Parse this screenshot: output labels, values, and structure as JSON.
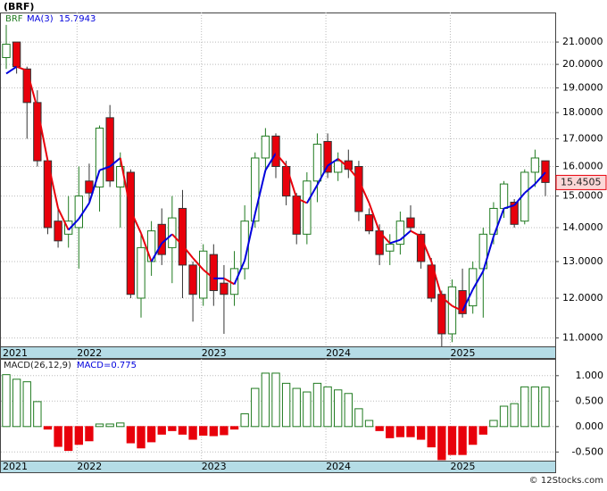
{
  "chart_data": {
    "type": "candlestick",
    "title": "(BRF)",
    "symbol": "BRF",
    "ma_name": "MA(3)",
    "ma_value": 15.7943,
    "last_price": 15.4505,
    "macd_name": "MACD(26,12,9)",
    "macd_value": {
      "value": 0.775,
      "label": "MACD=0.775"
    },
    "footer": "© 12Stocks.com",
    "log_scale": true,
    "grid": true,
    "up_color": "#1f7a1f",
    "down_color": "#e8000b",
    "ma_up_color": "#0000dd",
    "ma_down_color": "#e8000b",
    "categories": [
      "2021",
      null,
      null,
      null,
      null,
      null,
      null,
      "2022",
      null,
      null,
      null,
      null,
      null,
      null,
      null,
      null,
      null,
      null,
      null,
      "2023",
      null,
      null,
      null,
      null,
      null,
      null,
      null,
      null,
      null,
      null,
      null,
      "2024",
      null,
      null,
      null,
      null,
      null,
      null,
      null,
      null,
      null,
      null,
      null,
      "2025",
      null,
      null,
      null,
      null,
      null,
      null,
      null,
      null,
      null
    ],
    "open": [
      20.3,
      21.0,
      19.8,
      18.4,
      16.2,
      14.2,
      13.8,
      14.0,
      15.5,
      15.3,
      17.8,
      15.3,
      15.8,
      12.0,
      13.0,
      14.1,
      13.4,
      14.6,
      12.9,
      12.0,
      13.2,
      12.4,
      12.1,
      12.8,
      14.2,
      16.3,
      17.1,
      16.0,
      15.0,
      13.8,
      15.5,
      16.9,
      15.8,
      16.2,
      16.0,
      14.4,
      13.9,
      13.3,
      13.5,
      14.3,
      13.8,
      12.9,
      12.1,
      11.1,
      12.2,
      11.8,
      12.8,
      13.8,
      14.6,
      14.8,
      14.2,
      15.8,
      16.2
    ],
    "high": [
      21.8,
      21.0,
      19.9,
      18.9,
      16.3,
      14.6,
      15.0,
      16.0,
      16.1,
      17.5,
      18.3,
      16.5,
      15.9,
      13.8,
      14.2,
      14.6,
      15.0,
      15.2,
      13.0,
      13.5,
      13.5,
      12.9,
      13.3,
      14.7,
      16.5,
      17.4,
      17.2,
      16.2,
      15.1,
      15.8,
      17.2,
      17.2,
      16.5,
      16.6,
      16.2,
      14.6,
      14.1,
      13.8,
      14.5,
      14.7,
      13.9,
      13.1,
      12.2,
      12.5,
      12.8,
      13.0,
      14.0,
      14.8,
      15.5,
      14.9,
      15.9,
      16.6,
      16.2
    ],
    "low": [
      19.8,
      19.6,
      17.0,
      16.0,
      13.8,
      13.4,
      13.4,
      12.8,
      14.8,
      14.5,
      15.3,
      14.0,
      12.0,
      11.5,
      12.6,
      12.9,
      12.4,
      12.0,
      11.4,
      11.8,
      11.8,
      11.1,
      11.8,
      12.5,
      14.0,
      15.8,
      15.6,
      14.7,
      13.5,
      13.5,
      14.8,
      15.6,
      15.5,
      15.6,
      14.2,
      13.8,
      12.9,
      12.9,
      13.2,
      13.9,
      12.8,
      11.9,
      10.8,
      10.9,
      11.5,
      11.6,
      11.5,
      13.5,
      14.3,
      14.0,
      14.1,
      15.3,
      15.0
    ],
    "close": [
      20.9,
      19.9,
      18.4,
      16.2,
      14.0,
      13.6,
      14.2,
      15.0,
      15.1,
      17.4,
      15.5,
      16.0,
      12.1,
      13.4,
      13.9,
      13.2,
      14.3,
      12.9,
      12.1,
      13.3,
      12.2,
      12.1,
      12.8,
      14.2,
      16.3,
      17.1,
      16.0,
      15.0,
      13.8,
      15.5,
      16.8,
      15.8,
      16.2,
      15.9,
      14.5,
      13.9,
      13.2,
      13.5,
      14.2,
      14.0,
      13.0,
      12.0,
      11.1,
      12.3,
      11.6,
      12.8,
      13.8,
      14.6,
      15.4,
      14.1,
      15.8,
      16.3,
      15.4505
    ],
    "ma": [
      19.6,
      19.9,
      19.73,
      18.17,
      16.2,
      14.6,
      13.93,
      14.27,
      14.77,
      15.87,
      16.0,
      16.3,
      14.53,
      13.83,
      13.0,
      13.53,
      13.8,
      13.47,
      13.1,
      12.77,
      12.53,
      12.53,
      12.37,
      13.03,
      14.43,
      15.87,
      16.47,
      16.03,
      14.93,
      14.77,
      15.37,
      16.03,
      16.27,
      15.97,
      15.53,
      14.77,
      13.87,
      13.53,
      13.63,
      13.9,
      13.73,
      13.0,
      12.03,
      11.8,
      11.67,
      12.23,
      12.73,
      13.73,
      14.6,
      14.7,
      15.1,
      15.4,
      15.7943
    ],
    "macd": [
      1.02,
      0.93,
      0.88,
      0.49,
      -0.05,
      -0.39,
      -0.47,
      -0.35,
      -0.28,
      0.05,
      0.05,
      0.07,
      -0.32,
      -0.42,
      -0.3,
      -0.15,
      -0.08,
      -0.15,
      -0.25,
      -0.17,
      -0.18,
      -0.16,
      -0.05,
      0.25,
      0.75,
      1.05,
      1.05,
      0.85,
      0.75,
      0.68,
      0.85,
      0.78,
      0.72,
      0.65,
      0.35,
      0.12,
      -0.08,
      -0.22,
      -0.2,
      -0.2,
      -0.25,
      -0.4,
      -0.65,
      -0.55,
      -0.55,
      -0.35,
      -0.15,
      0.12,
      0.4,
      0.45,
      0.78,
      0.78,
      0.775
    ],
    "ylim": [
      10.8,
      22.4
    ],
    "yticks": [
      {
        "value": 11,
        "label": "11.0000"
      },
      {
        "value": 12,
        "label": "12.0000"
      },
      {
        "value": 13,
        "label": "13.0000"
      },
      {
        "value": 14,
        "label": "14.0000"
      },
      {
        "value": 15,
        "label": "15.0000"
      },
      {
        "value": 16,
        "label": "16.0000"
      },
      {
        "value": 17,
        "label": "17.0000"
      },
      {
        "value": 18,
        "label": "18.0000"
      },
      {
        "value": 19,
        "label": "19.0000"
      },
      {
        "value": 20,
        "label": "20.0000"
      },
      {
        "value": 21,
        "label": "21.0000"
      }
    ],
    "y2lim": [
      -0.67,
      1.33
    ],
    "y2ticks": [
      {
        "value": -0.5,
        "label": "-0.500"
      },
      {
        "value": 0,
        "label": "0.000"
      },
      {
        "value": 0.5,
        "label": "0.500"
      },
      {
        "value": 1,
        "label": "1.000"
      }
    ]
  }
}
